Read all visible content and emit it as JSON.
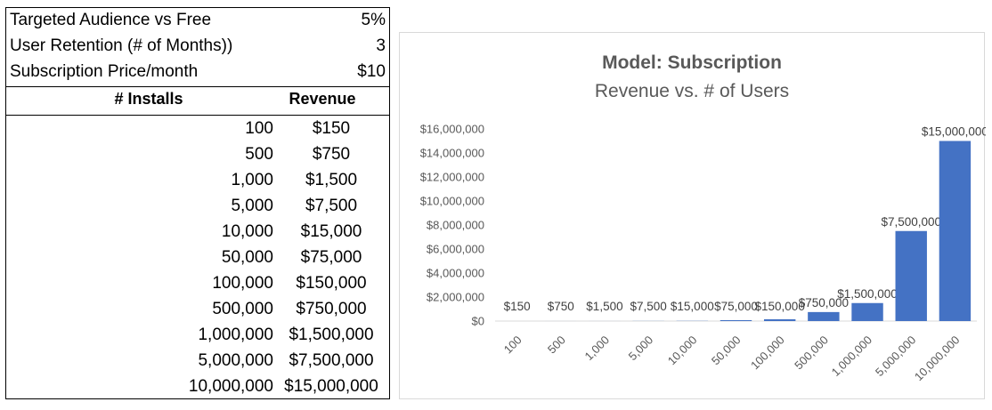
{
  "params": [
    {
      "label": "Targeted Audience vs Free",
      "value": "5%"
    },
    {
      "label": "User Retention (# of Months))",
      "value": "3"
    },
    {
      "label": "Subscription Price/month",
      "value": "$10"
    }
  ],
  "table": {
    "headers": {
      "installs": "# Installs",
      "revenue": "Revenue"
    },
    "rows": [
      {
        "installs": "100",
        "revenue": "$150"
      },
      {
        "installs": "500",
        "revenue": "$750"
      },
      {
        "installs": "1,000",
        "revenue": "$1,500"
      },
      {
        "installs": "5,000",
        "revenue": "$7,500"
      },
      {
        "installs": "10,000",
        "revenue": "$15,000"
      },
      {
        "installs": "50,000",
        "revenue": "$75,000"
      },
      {
        "installs": "100,000",
        "revenue": "$150,000"
      },
      {
        "installs": "500,000",
        "revenue": "$750,000"
      },
      {
        "installs": "1,000,000",
        "revenue": "$1,500,000"
      },
      {
        "installs": "5,000,000",
        "revenue": "$7,500,000"
      },
      {
        "installs": "10,000,000",
        "revenue": "$15,000,000"
      }
    ]
  },
  "chart_data": {
    "type": "bar",
    "title": "Model: Subscription",
    "subtitle": "Revenue vs. # of Users",
    "xlabel": "",
    "ylabel": "",
    "categories": [
      "100",
      "500",
      "1,000",
      "5,000",
      "10,000",
      "50,000",
      "100,000",
      "500,000",
      "1,000,000",
      "5,000,000",
      "10,000,000"
    ],
    "values": [
      150,
      750,
      1500,
      7500,
      15000,
      75000,
      150000,
      750000,
      1500000,
      7500000,
      15000000
    ],
    "data_labels": [
      "$150",
      "$750",
      "$1,500",
      "$7,500",
      "$15,000",
      "$75,000",
      "$150,000",
      "$750,000",
      "$1,500,000",
      "$7,500,000",
      "$15,000,000"
    ],
    "ylim": [
      0,
      16000000
    ],
    "y_ticks": [
      0,
      2000000,
      4000000,
      6000000,
      8000000,
      10000000,
      12000000,
      14000000,
      16000000
    ],
    "y_tick_labels": [
      "$0",
      "$2,000,000",
      "$4,000,000",
      "$6,000,000",
      "$8,000,000",
      "$10,000,000",
      "$12,000,000",
      "$14,000,000",
      "$16,000,000"
    ],
    "grid": false,
    "legend": "none",
    "bar_color": "#4472c4"
  }
}
